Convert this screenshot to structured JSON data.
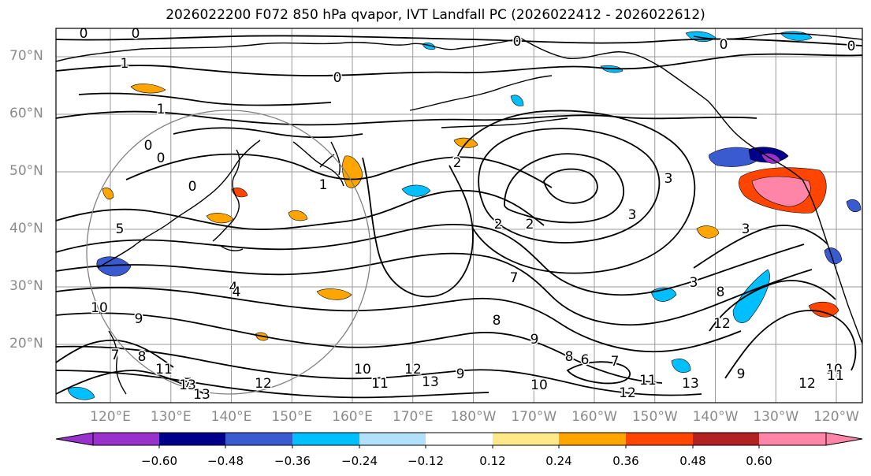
{
  "title": "2026022200 F072 850 hPa qvapor, IVT Landfall PC (2026022412 - 2026022612)",
  "lat_labels": [
    "70°N",
    "60°N",
    "50°N",
    "40°N",
    "30°N",
    "20°N"
  ],
  "lon_labels": [
    "120°E",
    "130°E",
    "140°E",
    "150°E",
    "160°E",
    "170°E",
    "180°W",
    "170°W",
    "160°W",
    "150°W",
    "140°W",
    "130°W",
    "120°W"
  ],
  "contour_labels": [
    "0",
    "0",
    "0",
    "0",
    "0",
    "0",
    "1",
    "1",
    "0",
    "0",
    "0",
    "1",
    "2",
    "2",
    "3",
    "3",
    "3",
    "3",
    "2",
    "4",
    "10",
    "9",
    "8",
    "7",
    "11",
    "13",
    "13",
    "12",
    "10",
    "11",
    "12",
    "13",
    "9",
    "8",
    "7",
    "9",
    "8",
    "10",
    "12",
    "11",
    "13",
    "6",
    "7",
    "9",
    "12",
    "10",
    "11",
    "12",
    "8",
    "7",
    "4",
    "5"
  ],
  "colorbar": {
    "colors": [
      "#9932cc",
      "#00008b",
      "#3a5bd0",
      "#00bfff",
      "#b0e0fa",
      "#ffffff",
      "#ffe88a",
      "#ffa500",
      "#ff4500",
      "#b22222",
      "#ff85a8"
    ],
    "tick_labels": [
      "−0.60",
      "−0.48",
      "−0.36",
      "−0.24",
      "−0.12",
      "0.12",
      "0.24",
      "0.36",
      "0.48",
      "0.60"
    ],
    "tick_values": [
      -0.6,
      -0.48,
      -0.36,
      -0.24,
      -0.12,
      0.12,
      0.24,
      0.36,
      0.48,
      0.6
    ]
  },
  "colors": {
    "coast": "#000000",
    "grid": "#9a9a9a",
    "contour": "#000000",
    "circle": "#808080",
    "positive_fill": "#ffa500",
    "positive_strong": "#ff4500",
    "positive_pink": "#ff85a8",
    "negative_fill": "#00bfff",
    "negative_mid": "#3a5bd0",
    "negative_dark": "#00008b",
    "negative_purple": "#9932cc"
  }
}
